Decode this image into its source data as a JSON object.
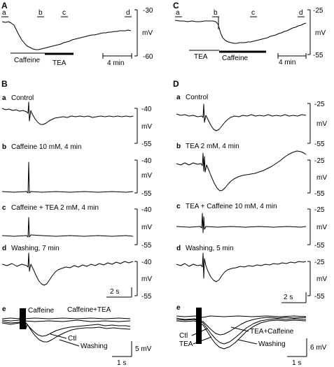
{
  "panel_labels": {
    "A": "A",
    "B": "B",
    "C": "C",
    "D": "D"
  },
  "A": {
    "markers": [
      "a",
      "b",
      "c",
      "d"
    ],
    "y_ticks": [
      "-30",
      "-60"
    ],
    "y_unit": "mV",
    "drug_labels": [
      "Caffeine",
      "TEA"
    ],
    "scale_label": "4 min"
  },
  "C": {
    "markers": [
      "a",
      "b",
      "c",
      "d"
    ],
    "y_ticks": [
      "-25",
      "-55"
    ],
    "y_unit": "mV",
    "drug_labels": [
      "TEA",
      "Caffeine"
    ],
    "scale_label": "4 min"
  },
  "B": {
    "traces": [
      {
        "letter": "a",
        "title": "Control",
        "top": "-40",
        "unit": "mV",
        "bottom": "-55"
      },
      {
        "letter": "b",
        "title": "Caffeine 10 mM, 4 min",
        "top": "-40",
        "unit": "mV",
        "bottom": "-55"
      },
      {
        "letter": "c",
        "title": "Caffeine + TEA 2 mM, 4 min",
        "top": "-40",
        "unit": "mV",
        "bottom": "-55"
      },
      {
        "letter": "d",
        "title": "Washing, 7 min",
        "top": "-40",
        "unit": "mV",
        "bottom": "-55"
      }
    ],
    "time_scale": "2 s"
  },
  "D": {
    "traces": [
      {
        "letter": "a",
        "title": "Control",
        "top": "-25",
        "unit": "mV",
        "bottom": "-55"
      },
      {
        "letter": "b",
        "title": "TEA 2 mM, 4 min",
        "top": "-25",
        "unit": "mV",
        "bottom": "-55"
      },
      {
        "letter": "c",
        "title": "TEA + Caffeine 10 mM, 4 min",
        "top": "-25",
        "unit": "mV",
        "bottom": "-55"
      },
      {
        "letter": "d",
        "title": "Washing, 5 min",
        "top": "-25",
        "unit": "mV",
        "bottom": "-55"
      }
    ],
    "time_scale": "2 s"
  },
  "Be": {
    "letter": "e",
    "labels": [
      "Caffeine",
      "Caffeine+TEA",
      "Ctl",
      "Washing"
    ],
    "v_scale": "5 mV",
    "t_scale": "1 s"
  },
  "De": {
    "letter": "e",
    "labels": [
      "TEA+Caffeine",
      "Ctl",
      "TEA",
      "Washing"
    ],
    "v_scale": "6 mV",
    "t_scale": "1 s"
  }
}
